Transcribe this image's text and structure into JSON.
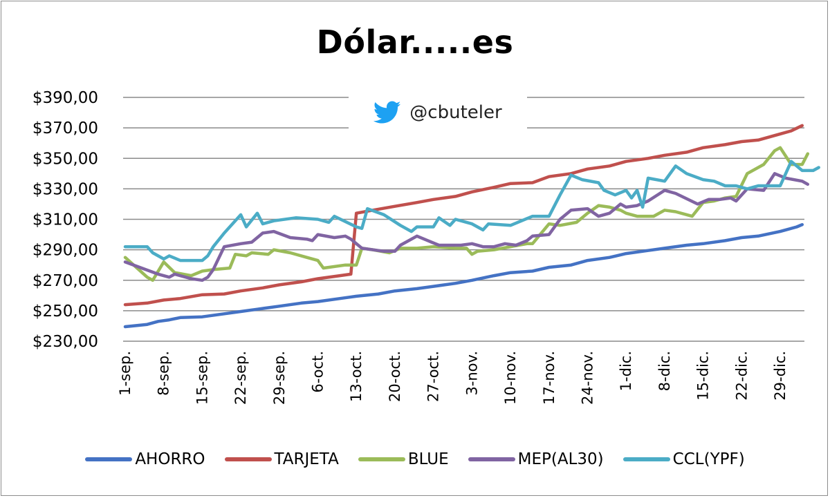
{
  "chart_data": {
    "type": "line",
    "title": "Dólar.....es",
    "watermark": "@cbuteler",
    "xlabel": "",
    "ylabel": "",
    "ylim": [
      230,
      390
    ],
    "yticks": [
      "$390,00",
      "$370,00",
      "$350,00",
      "$330,00",
      "$310,00",
      "$290,00",
      "$270,00",
      "$250,00",
      "$230,00"
    ],
    "ytick_values": [
      390,
      370,
      350,
      330,
      310,
      290,
      270,
      250,
      230
    ],
    "xtick_labels": [
      "1-sep.",
      "8-sep.",
      "15-sep.",
      "22-sep.",
      "29-sep.",
      "6-oct.",
      "13-oct.",
      "20-oct.",
      "27-oct.",
      "3-nov.",
      "10-nov.",
      "17-nov.",
      "24-nov.",
      "1-dic.",
      "8-dic.",
      "15-dic.",
      "22-dic.",
      "29-dic."
    ],
    "xtick_days": [
      0,
      7,
      14,
      21,
      28,
      35,
      42,
      49,
      56,
      63,
      70,
      77,
      84,
      91,
      98,
      105,
      112,
      119
    ],
    "x_unit": "days since 1-sep",
    "grid": true,
    "legend_position": "bottom",
    "series": [
      {
        "name": "AHORRO",
        "color": "#4472C4",
        "points": [
          [
            0,
            239.5
          ],
          [
            4,
            241
          ],
          [
            6,
            243
          ],
          [
            8,
            244
          ],
          [
            10,
            245.5
          ],
          [
            14,
            246
          ],
          [
            18,
            248
          ],
          [
            21,
            249.5
          ],
          [
            24,
            251
          ],
          [
            28,
            253
          ],
          [
            32,
            255
          ],
          [
            35,
            256
          ],
          [
            39,
            258
          ],
          [
            42,
            259.5
          ],
          [
            46,
            261
          ],
          [
            49,
            263
          ],
          [
            53,
            264.5
          ],
          [
            56,
            266
          ],
          [
            60,
            268
          ],
          [
            63,
            270
          ],
          [
            67,
            273
          ],
          [
            70,
            275
          ],
          [
            74,
            276
          ],
          [
            77,
            278.5
          ],
          [
            81,
            280
          ],
          [
            84,
            283
          ],
          [
            88,
            285
          ],
          [
            91,
            287.5
          ],
          [
            95,
            289.5
          ],
          [
            98,
            291
          ],
          [
            102,
            293
          ],
          [
            105,
            294
          ],
          [
            109,
            296
          ],
          [
            112,
            298
          ],
          [
            115,
            299
          ],
          [
            119,
            302
          ],
          [
            122,
            305
          ],
          [
            123,
            306.5
          ]
        ]
      },
      {
        "name": "TARJETA",
        "color": "#C0504D",
        "points": [
          [
            0,
            254
          ],
          [
            4,
            255
          ],
          [
            7,
            257
          ],
          [
            10,
            258
          ],
          [
            14,
            260.5
          ],
          [
            18,
            261
          ],
          [
            21,
            263
          ],
          [
            25,
            265
          ],
          [
            28,
            267
          ],
          [
            32,
            269
          ],
          [
            35,
            271
          ],
          [
            39,
            273
          ],
          [
            41,
            274
          ],
          [
            42,
            314
          ],
          [
            45,
            316
          ],
          [
            49,
            318.5
          ],
          [
            53,
            321
          ],
          [
            56,
            323
          ],
          [
            60,
            325
          ],
          [
            63,
            328
          ],
          [
            67,
            331
          ],
          [
            70,
            333.5
          ],
          [
            74,
            334
          ],
          [
            77,
            338
          ],
          [
            81,
            340
          ],
          [
            84,
            343
          ],
          [
            88,
            345
          ],
          [
            91,
            348
          ],
          [
            95,
            350
          ],
          [
            98,
            352
          ],
          [
            102,
            354
          ],
          [
            105,
            357
          ],
          [
            109,
            359
          ],
          [
            112,
            361
          ],
          [
            115,
            362
          ],
          [
            119,
            366
          ],
          [
            121,
            368
          ],
          [
            123,
            371.5
          ]
        ]
      },
      {
        "name": "BLUE",
        "color": "#9BBB59",
        "points": [
          [
            0,
            285
          ],
          [
            4,
            272
          ],
          [
            5,
            270
          ],
          [
            7,
            282
          ],
          [
            9,
            275
          ],
          [
            12,
            273
          ],
          [
            14,
            276
          ],
          [
            16,
            277
          ],
          [
            19,
            278
          ],
          [
            20,
            287
          ],
          [
            22,
            286
          ],
          [
            23,
            288
          ],
          [
            26,
            287
          ],
          [
            27,
            290
          ],
          [
            30,
            288
          ],
          [
            33,
            285
          ],
          [
            35,
            283
          ],
          [
            36,
            278
          ],
          [
            40,
            280
          ],
          [
            42,
            280
          ],
          [
            43,
            291
          ],
          [
            45,
            290
          ],
          [
            48,
            288
          ],
          [
            50,
            291
          ],
          [
            53,
            291
          ],
          [
            56,
            292
          ],
          [
            60,
            291
          ],
          [
            62,
            291
          ],
          [
            63,
            287
          ],
          [
            64,
            289
          ],
          [
            67,
            290
          ],
          [
            70,
            292
          ],
          [
            73,
            294
          ],
          [
            74,
            294
          ],
          [
            77,
            307
          ],
          [
            79,
            306
          ],
          [
            82,
            308
          ],
          [
            84,
            314
          ],
          [
            86,
            319
          ],
          [
            88,
            318
          ],
          [
            90,
            316
          ],
          [
            91,
            314
          ],
          [
            93,
            312
          ],
          [
            96,
            312
          ],
          [
            98,
            316
          ],
          [
            100,
            315
          ],
          [
            103,
            312
          ],
          [
            105,
            321
          ],
          [
            107,
            322
          ],
          [
            109,
            324
          ],
          [
            111,
            325
          ],
          [
            113,
            340
          ],
          [
            116,
            346
          ],
          [
            118,
            355
          ],
          [
            119,
            357
          ],
          [
            121,
            346
          ],
          [
            123,
            346
          ],
          [
            124,
            353
          ]
        ]
      },
      {
        "name": "MEP(AL30)",
        "color": "#8064A2",
        "points": [
          [
            0,
            282
          ],
          [
            3,
            278
          ],
          [
            6,
            274
          ],
          [
            8,
            272
          ],
          [
            9,
            274
          ],
          [
            12,
            271
          ],
          [
            14,
            270
          ],
          [
            15,
            272
          ],
          [
            16,
            277
          ],
          [
            18,
            292
          ],
          [
            21,
            294
          ],
          [
            23,
            295
          ],
          [
            25,
            301
          ],
          [
            27,
            302
          ],
          [
            30,
            298
          ],
          [
            33,
            297
          ],
          [
            34,
            296
          ],
          [
            35,
            300
          ],
          [
            38,
            298
          ],
          [
            40,
            299
          ],
          [
            41,
            297
          ],
          [
            43,
            291
          ],
          [
            47,
            289
          ],
          [
            49,
            289
          ],
          [
            50,
            293
          ],
          [
            53,
            299
          ],
          [
            55,
            296
          ],
          [
            57,
            293
          ],
          [
            61,
            293
          ],
          [
            63,
            294
          ],
          [
            65,
            292
          ],
          [
            67,
            292
          ],
          [
            69,
            294
          ],
          [
            71,
            293
          ],
          [
            73,
            296
          ],
          [
            74,
            299
          ],
          [
            77,
            300
          ],
          [
            79,
            310
          ],
          [
            81,
            316
          ],
          [
            84,
            317
          ],
          [
            86,
            312
          ],
          [
            88,
            314
          ],
          [
            90,
            320
          ],
          [
            91,
            318
          ],
          [
            93,
            319
          ],
          [
            95,
            322
          ],
          [
            98,
            329
          ],
          [
            100,
            327
          ],
          [
            104,
            320
          ],
          [
            106,
            323
          ],
          [
            108,
            323
          ],
          [
            110,
            324
          ],
          [
            111,
            322
          ],
          [
            113,
            330
          ],
          [
            116,
            329
          ],
          [
            118,
            340
          ],
          [
            120,
            337
          ],
          [
            123,
            335
          ],
          [
            124,
            333
          ]
        ]
      },
      {
        "name": "CCL(YPF)",
        "color": "#4BACC6",
        "points": [
          [
            0,
            292
          ],
          [
            4,
            292
          ],
          [
            5,
            288
          ],
          [
            7,
            284
          ],
          [
            8,
            286
          ],
          [
            10,
            283
          ],
          [
            14,
            283
          ],
          [
            15,
            286
          ],
          [
            16,
            292
          ],
          [
            18,
            301
          ],
          [
            21,
            313
          ],
          [
            22,
            305
          ],
          [
            24,
            314
          ],
          [
            25,
            307
          ],
          [
            27,
            309
          ],
          [
            31,
            311
          ],
          [
            35,
            310
          ],
          [
            37,
            308
          ],
          [
            38,
            312
          ],
          [
            42,
            305
          ],
          [
            43,
            304
          ],
          [
            44,
            317
          ],
          [
            47,
            313
          ],
          [
            50,
            306
          ],
          [
            52,
            302
          ],
          [
            53,
            305
          ],
          [
            56,
            305
          ],
          [
            57,
            311
          ],
          [
            59,
            306
          ],
          [
            60,
            310
          ],
          [
            63,
            307
          ],
          [
            65,
            303
          ],
          [
            66,
            307
          ],
          [
            70,
            306
          ],
          [
            74,
            312
          ],
          [
            77,
            312
          ],
          [
            79,
            326
          ],
          [
            81,
            339
          ],
          [
            83,
            336
          ],
          [
            86,
            334
          ],
          [
            87,
            329
          ],
          [
            89,
            326
          ],
          [
            91,
            329
          ],
          [
            92,
            324
          ],
          [
            93,
            329
          ],
          [
            94,
            318
          ],
          [
            95,
            337
          ],
          [
            98,
            335
          ],
          [
            100,
            345
          ],
          [
            102,
            340
          ],
          [
            105,
            336
          ],
          [
            107,
            335
          ],
          [
            109,
            332
          ],
          [
            111,
            332
          ],
          [
            113,
            330
          ],
          [
            115,
            332
          ],
          [
            119,
            332
          ],
          [
            121,
            348
          ],
          [
            123,
            342
          ],
          [
            125,
            342
          ],
          [
            126,
            344
          ]
        ]
      }
    ]
  },
  "legend": {
    "items": [
      {
        "label": "AHORRO",
        "color": "#4472C4"
      },
      {
        "label": "TARJETA",
        "color": "#C0504D"
      },
      {
        "label": "BLUE",
        "color": "#9BBB59"
      },
      {
        "label": "MEP(AL30)",
        "color": "#8064A2"
      },
      {
        "label": "CCL(YPF)",
        "color": "#4BACC6"
      }
    ]
  },
  "watermark": {
    "handle": "@cbuteler",
    "icon": "twitter-bird-icon",
    "color": "#1DA1F2"
  }
}
